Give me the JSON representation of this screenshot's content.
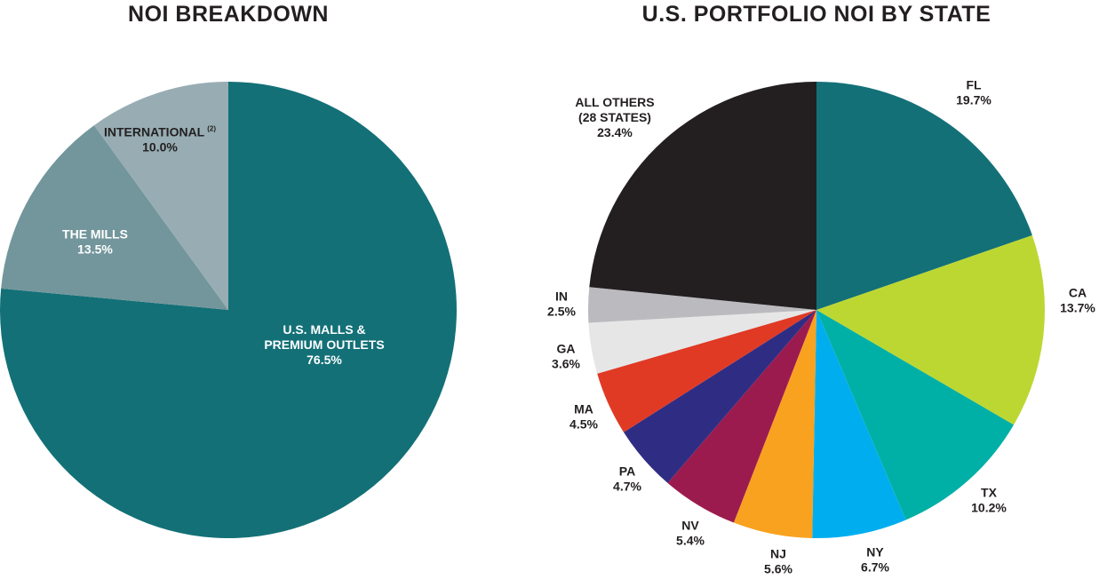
{
  "chart_data": [
    {
      "type": "pie",
      "title": "NOI BREAKDOWN",
      "start": "12 o'clock, clockwise",
      "slices": [
        {
          "label": "U.S. MALLS &",
          "label2": "PREMIUM OUTLETS",
          "pct_text": "76.5%",
          "value": 76.5,
          "color": "#137077",
          "text_color": "#ffffff"
        },
        {
          "label": "THE MILLS",
          "pct_text": "13.5%",
          "value": 13.5,
          "color": "#73969c",
          "text_color": "#ffffff"
        },
        {
          "label": "INTERNATIONAL",
          "note": "(2)",
          "pct_text": "10.0%",
          "value": 10.0,
          "color": "#97adb3",
          "text_color": "#231f20"
        }
      ]
    },
    {
      "type": "pie",
      "title": "U.S. PORTFOLIO NOI BY STATE",
      "start": "12 o'clock, clockwise",
      "slices": [
        {
          "label": "FL",
          "pct_text": "19.7%",
          "value": 19.7,
          "color": "#137077"
        },
        {
          "label": "CA",
          "pct_text": "13.7%",
          "value": 13.7,
          "color": "#bdd732"
        },
        {
          "label": "TX",
          "pct_text": "10.2%",
          "value": 10.2,
          "color": "#00b0a6"
        },
        {
          "label": "NY",
          "pct_text": "6.7%",
          "value": 6.7,
          "color": "#00aeef"
        },
        {
          "label": "NJ",
          "pct_text": "5.6%",
          "value": 5.6,
          "color": "#f8a21f"
        },
        {
          "label": "NV",
          "pct_text": "5.4%",
          "value": 5.4,
          "color": "#9c1b4e"
        },
        {
          "label": "PA",
          "pct_text": "4.7%",
          "value": 4.7,
          "color": "#2f2d83"
        },
        {
          "label": "MA",
          "pct_text": "4.5%",
          "value": 4.5,
          "color": "#e03a25"
        },
        {
          "label": "GA",
          "pct_text": "3.6%",
          "value": 3.6,
          "color": "#e6e6e7"
        },
        {
          "label": "IN",
          "pct_text": "2.5%",
          "value": 2.5,
          "color": "#bbbbbf"
        },
        {
          "label": "ALL OTHERS",
          "label2": "(28 STATES)",
          "pct_text": "23.4%",
          "value": 23.4,
          "color": "#231f20"
        }
      ]
    }
  ]
}
